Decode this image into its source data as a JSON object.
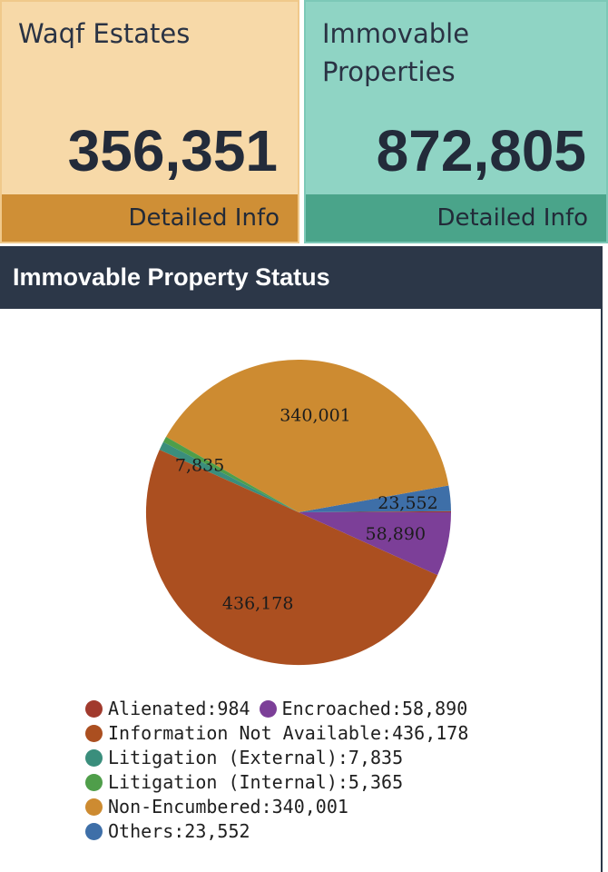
{
  "cards": [
    {
      "title": "Waqf Estates",
      "value": "356,351",
      "link_label": "Detailed Info",
      "colors": {
        "background": "#f7d9a8",
        "footer": "#cf8f36"
      }
    },
    {
      "title": "Immovable Properties",
      "value": "872,805",
      "link_label": "Detailed Info",
      "colors": {
        "background": "#8fd4c4",
        "footer": "#4aa48a"
      }
    }
  ],
  "panel": {
    "title": "Immovable Property Status"
  },
  "chart_data": {
    "type": "pie",
    "title": "Immovable Property Status",
    "legend_position": "bottom",
    "start": "east",
    "direction": "counterclockwise",
    "slices": [
      {
        "label": "Alienated",
        "value": 984,
        "color": "#a13a2d",
        "show_label": false,
        "value_text": "984"
      },
      {
        "label": "Others",
        "value": 23552,
        "color": "#3e6fa8",
        "show_label": true,
        "value_text": "23,552"
      },
      {
        "label": "Non-Encumbered",
        "value": 340001,
        "color": "#cd8b31",
        "show_label": true,
        "value_text": "340,001"
      },
      {
        "label": "Litigation (Internal)",
        "value": 5365,
        "color": "#4f9e4a",
        "show_label": false,
        "value_text": "5,365"
      },
      {
        "label": "Litigation (External)",
        "value": 7835,
        "color": "#3a8e7c",
        "show_label": true,
        "value_text": "7,835"
      },
      {
        "label": "Information Not Available",
        "value": 436178,
        "color": "#ab4f20",
        "show_label": true,
        "value_text": "436,178"
      },
      {
        "label": "Encroached",
        "value": 58890,
        "color": "#7c3f98",
        "show_label": true,
        "value_text": "58,890"
      }
    ],
    "legend_rows": [
      [
        {
          "text": "Alienated:984",
          "color": "#a13a2d"
        },
        {
          "text": "Encroached:58,890",
          "color": "#7c3f98"
        }
      ],
      [
        {
          "text": "Information Not Available:436,178",
          "color": "#ab4f20"
        }
      ],
      [
        {
          "text": "Litigation (External):7,835",
          "color": "#3a8e7c"
        }
      ],
      [
        {
          "text": "Litigation (Internal):5,365",
          "color": "#4f9e4a"
        }
      ],
      [
        {
          "text": "Non-Encumbered:340,001",
          "color": "#cd8b31"
        }
      ],
      [
        {
          "text": "Others:23,552",
          "color": "#3e6fa8"
        }
      ]
    ]
  }
}
